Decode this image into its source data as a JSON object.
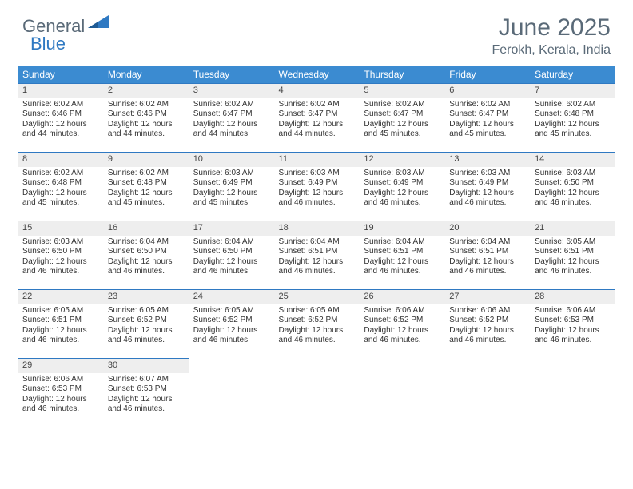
{
  "logo": {
    "word1": "General",
    "word2": "Blue"
  },
  "header": {
    "title": "June 2025",
    "location": "Ferokh, Kerala, India"
  },
  "calendar": {
    "headers_bg": "#3b8bd1",
    "header_text_color": "#ffffff",
    "divider_color": "#2f79c2",
    "daynum_bg": "#eeeeee",
    "columns": [
      "Sunday",
      "Monday",
      "Tuesday",
      "Wednesday",
      "Thursday",
      "Friday",
      "Saturday"
    ],
    "weeks": [
      [
        {
          "day": 1,
          "sunrise": "6:02 AM",
          "sunset": "6:46 PM",
          "daylight": "12 hours and 44 minutes."
        },
        {
          "day": 2,
          "sunrise": "6:02 AM",
          "sunset": "6:46 PM",
          "daylight": "12 hours and 44 minutes."
        },
        {
          "day": 3,
          "sunrise": "6:02 AM",
          "sunset": "6:47 PM",
          "daylight": "12 hours and 44 minutes."
        },
        {
          "day": 4,
          "sunrise": "6:02 AM",
          "sunset": "6:47 PM",
          "daylight": "12 hours and 44 minutes."
        },
        {
          "day": 5,
          "sunrise": "6:02 AM",
          "sunset": "6:47 PM",
          "daylight": "12 hours and 45 minutes."
        },
        {
          "day": 6,
          "sunrise": "6:02 AM",
          "sunset": "6:47 PM",
          "daylight": "12 hours and 45 minutes."
        },
        {
          "day": 7,
          "sunrise": "6:02 AM",
          "sunset": "6:48 PM",
          "daylight": "12 hours and 45 minutes."
        }
      ],
      [
        {
          "day": 8,
          "sunrise": "6:02 AM",
          "sunset": "6:48 PM",
          "daylight": "12 hours and 45 minutes."
        },
        {
          "day": 9,
          "sunrise": "6:02 AM",
          "sunset": "6:48 PM",
          "daylight": "12 hours and 45 minutes."
        },
        {
          "day": 10,
          "sunrise": "6:03 AM",
          "sunset": "6:49 PM",
          "daylight": "12 hours and 45 minutes."
        },
        {
          "day": 11,
          "sunrise": "6:03 AM",
          "sunset": "6:49 PM",
          "daylight": "12 hours and 46 minutes."
        },
        {
          "day": 12,
          "sunrise": "6:03 AM",
          "sunset": "6:49 PM",
          "daylight": "12 hours and 46 minutes."
        },
        {
          "day": 13,
          "sunrise": "6:03 AM",
          "sunset": "6:49 PM",
          "daylight": "12 hours and 46 minutes."
        },
        {
          "day": 14,
          "sunrise": "6:03 AM",
          "sunset": "6:50 PM",
          "daylight": "12 hours and 46 minutes."
        }
      ],
      [
        {
          "day": 15,
          "sunrise": "6:03 AM",
          "sunset": "6:50 PM",
          "daylight": "12 hours and 46 minutes."
        },
        {
          "day": 16,
          "sunrise": "6:04 AM",
          "sunset": "6:50 PM",
          "daylight": "12 hours and 46 minutes."
        },
        {
          "day": 17,
          "sunrise": "6:04 AM",
          "sunset": "6:50 PM",
          "daylight": "12 hours and 46 minutes."
        },
        {
          "day": 18,
          "sunrise": "6:04 AM",
          "sunset": "6:51 PM",
          "daylight": "12 hours and 46 minutes."
        },
        {
          "day": 19,
          "sunrise": "6:04 AM",
          "sunset": "6:51 PM",
          "daylight": "12 hours and 46 minutes."
        },
        {
          "day": 20,
          "sunrise": "6:04 AM",
          "sunset": "6:51 PM",
          "daylight": "12 hours and 46 minutes."
        },
        {
          "day": 21,
          "sunrise": "6:05 AM",
          "sunset": "6:51 PM",
          "daylight": "12 hours and 46 minutes."
        }
      ],
      [
        {
          "day": 22,
          "sunrise": "6:05 AM",
          "sunset": "6:51 PM",
          "daylight": "12 hours and 46 minutes."
        },
        {
          "day": 23,
          "sunrise": "6:05 AM",
          "sunset": "6:52 PM",
          "daylight": "12 hours and 46 minutes."
        },
        {
          "day": 24,
          "sunrise": "6:05 AM",
          "sunset": "6:52 PM",
          "daylight": "12 hours and 46 minutes."
        },
        {
          "day": 25,
          "sunrise": "6:05 AM",
          "sunset": "6:52 PM",
          "daylight": "12 hours and 46 minutes."
        },
        {
          "day": 26,
          "sunrise": "6:06 AM",
          "sunset": "6:52 PM",
          "daylight": "12 hours and 46 minutes."
        },
        {
          "day": 27,
          "sunrise": "6:06 AM",
          "sunset": "6:52 PM",
          "daylight": "12 hours and 46 minutes."
        },
        {
          "day": 28,
          "sunrise": "6:06 AM",
          "sunset": "6:53 PM",
          "daylight": "12 hours and 46 minutes."
        }
      ],
      [
        {
          "day": 29,
          "sunrise": "6:06 AM",
          "sunset": "6:53 PM",
          "daylight": "12 hours and 46 minutes."
        },
        {
          "day": 30,
          "sunrise": "6:07 AM",
          "sunset": "6:53 PM",
          "daylight": "12 hours and 46 minutes."
        },
        null,
        null,
        null,
        null,
        null
      ]
    ],
    "labels": {
      "sunrise": "Sunrise:",
      "sunset": "Sunset:",
      "daylight": "Daylight:"
    }
  }
}
